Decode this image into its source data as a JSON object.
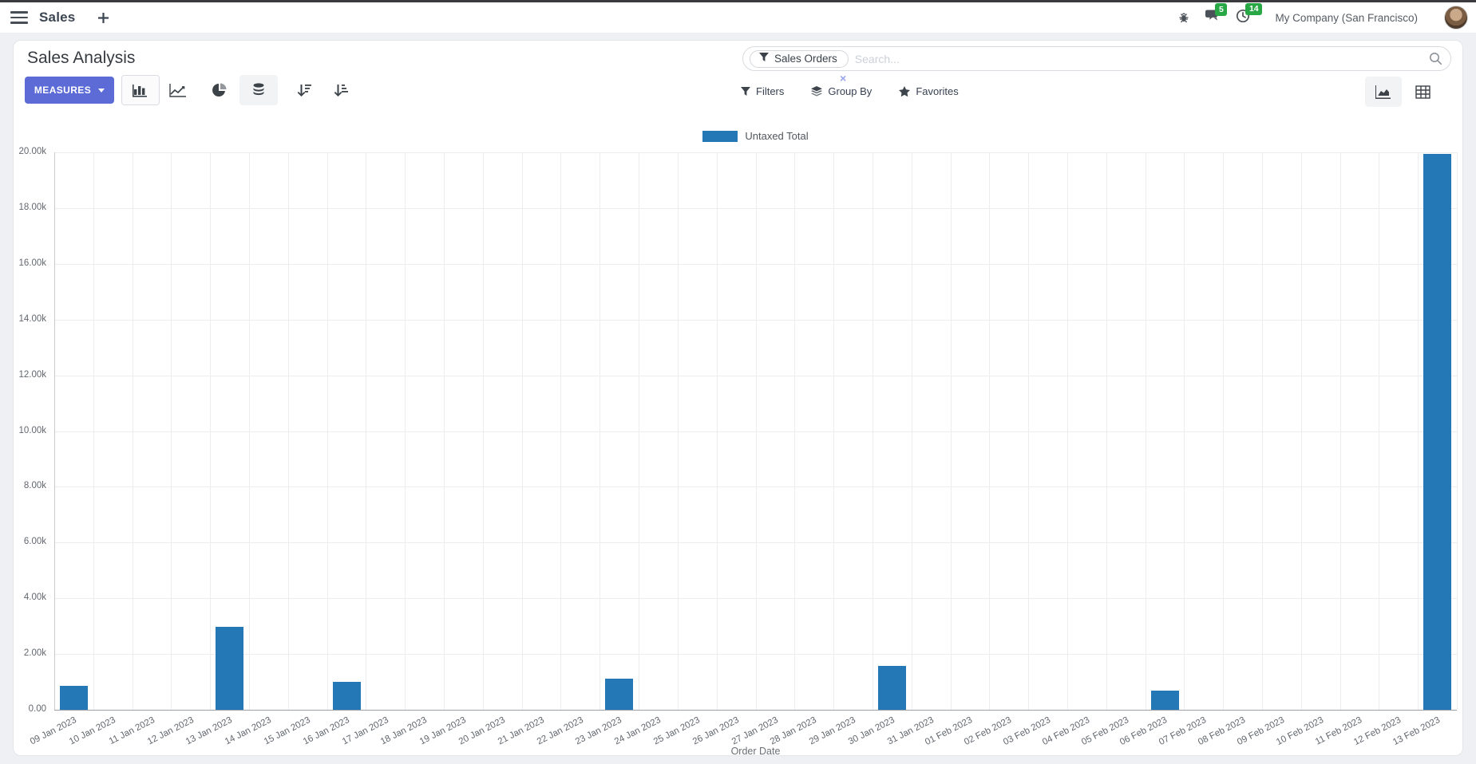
{
  "theme": {
    "accent": "#5c6bd6",
    "badge_color": "#28a745",
    "bar_color": "#2478b5"
  },
  "topbar": {
    "app_title": "Sales",
    "systray": {
      "messages_count": "5",
      "activities_count": "14",
      "company": "My Company (San Francisco)"
    }
  },
  "control_panel": {
    "title": "Sales Analysis",
    "measures_label": "MEASURES",
    "search": {
      "facet": "Sales Orders",
      "placeholder": "Search..."
    },
    "filters_label": "Filters",
    "group_by_label": "Group By",
    "favorites_label": "Favorites"
  },
  "chart_data": {
    "type": "bar",
    "title": "",
    "xlabel": "Order Date",
    "ylabel": "",
    "ylim": [
      0,
      20000
    ],
    "ytick_step": 2000,
    "ytick_labels": [
      "0.00",
      "2.00k",
      "4.00k",
      "6.00k",
      "8.00k",
      "10.00k",
      "12.00k",
      "14.00k",
      "16.00k",
      "18.00k",
      "20.00k"
    ],
    "grid": true,
    "legend": {
      "position": "top",
      "entries": [
        "Untaxed Total"
      ]
    },
    "categories": [
      "09 Jan 2023",
      "10 Jan 2023",
      "11 Jan 2023",
      "12 Jan 2023",
      "13 Jan 2023",
      "14 Jan 2023",
      "15 Jan 2023",
      "16 Jan 2023",
      "17 Jan 2023",
      "18 Jan 2023",
      "19 Jan 2023",
      "20 Jan 2023",
      "21 Jan 2023",
      "22 Jan 2023",
      "23 Jan 2023",
      "24 Jan 2023",
      "25 Jan 2023",
      "26 Jan 2023",
      "27 Jan 2023",
      "28 Jan 2023",
      "29 Jan 2023",
      "30 Jan 2023",
      "31 Jan 2023",
      "01 Feb 2023",
      "02 Feb 2023",
      "03 Feb 2023",
      "04 Feb 2023",
      "05 Feb 2023",
      "06 Feb 2023",
      "07 Feb 2023",
      "08 Feb 2023",
      "09 Feb 2023",
      "10 Feb 2023",
      "11 Feb 2023",
      "12 Feb 2023",
      "13 Feb 2023"
    ],
    "series": [
      {
        "name": "Untaxed Total",
        "color": "#2478b5",
        "values": [
          860,
          0,
          0,
          0,
          2980,
          0,
          0,
          1000,
          0,
          0,
          0,
          0,
          0,
          0,
          1120,
          0,
          0,
          0,
          0,
          0,
          0,
          1570,
          0,
          0,
          0,
          0,
          0,
          0,
          690,
          0,
          0,
          0,
          0,
          0,
          0,
          19950
        ]
      }
    ]
  }
}
